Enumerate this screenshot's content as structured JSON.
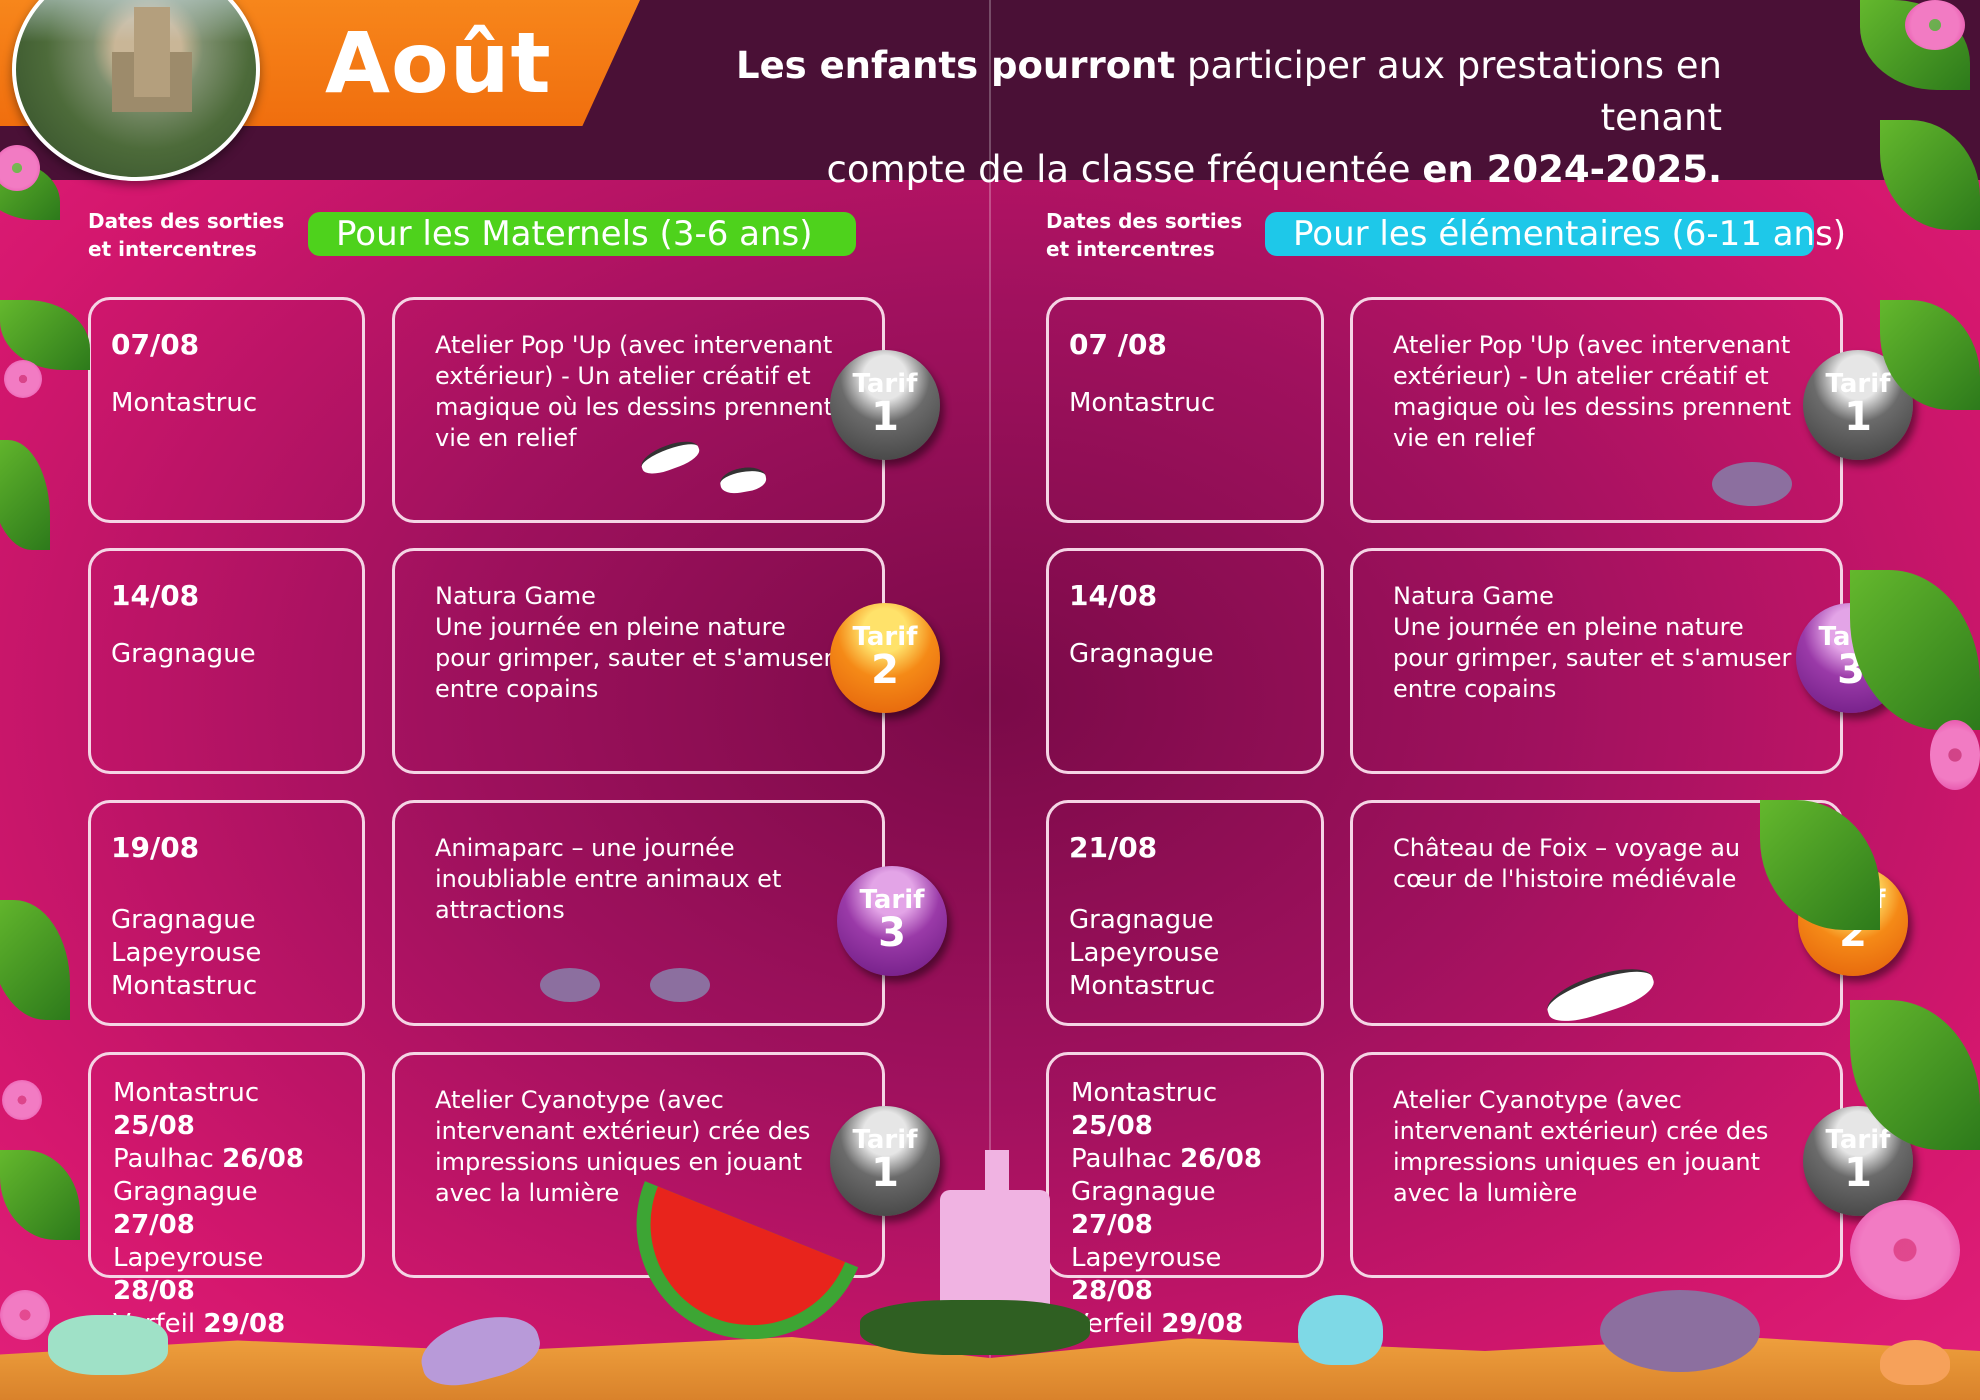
{
  "header": {
    "month": "Août",
    "intro": {
      "line1_bold": "Les enfants pourront",
      "line1_rest": " participer aux prestations en tenant",
      "line2_rest": "compte de la classe fréquentée ",
      "line2_bold": "en 2024-2025."
    }
  },
  "left": {
    "dates_label": "Dates des sorties\net intercentres",
    "pill": "Pour les Maternels (3-6 ans)",
    "rows": [
      {
        "date": "07/08",
        "place": "Montastruc",
        "activity": "Atelier Pop 'Up (avec intervenant extérieur) - Un atelier créatif et magique où les dessins prennent vie en relief",
        "tarif_label": "Tarif",
        "tarif_num": "1",
        "tarif_color": "#5a5a5a"
      },
      {
        "date": "14/08",
        "place": "Gragnague",
        "activity": "Natura Game\nUne journée en pleine nature pour grimper, sauter et s'amuser entre copains",
        "tarif_label": "Tarif",
        "tarif_num": "2",
        "tarif_color": "#f58a17"
      },
      {
        "date": "19/08",
        "places": [
          "Gragnague",
          "Lapeyrouse",
          "Montastruc"
        ],
        "activity": "Animaparc – une journée inoubliable entre animaux et attractions",
        "tarif_label": "Tarif",
        "tarif_num": "3",
        "tarif_color": "#9a3aa8"
      },
      {
        "multi": [
          {
            "place": "Montastruc",
            "date": "25/08"
          },
          {
            "place": "Paulhac",
            "date": "26/08"
          },
          {
            "place": "Gragnague",
            "date": "27/08"
          },
          {
            "place": "Lapeyrouse",
            "date": "28/08"
          },
          {
            "place": "Verfeil",
            "date": "29/08"
          }
        ],
        "activity": "Atelier Cyanotype (avec intervenant extérieur) crée des impressions uniques en jouant avec la lumière",
        "tarif_label": "Tarif",
        "tarif_num": "1",
        "tarif_color": "#5a5a5a"
      }
    ]
  },
  "right": {
    "dates_label": "Dates des sorties\net intercentres",
    "pill": "Pour les élémentaires (6-11 ans)",
    "rows": [
      {
        "date": "07 /08",
        "place": "Montastruc",
        "activity": "Atelier Pop 'Up (avec intervenant extérieur) - Un atelier créatif et magique où les dessins prennent vie en relief",
        "tarif_label": "Tarif",
        "tarif_num": "1",
        "tarif_color": "#5a5a5a"
      },
      {
        "date": "14/08",
        "place": "Gragnague",
        "activity": "Natura Game\nUne journée en pleine nature pour grimper, sauter et s'amuser entre copains",
        "tarif_label": "Tarif",
        "tarif_num": "3",
        "tarif_color": "#9a3aa8"
      },
      {
        "date": "21/08",
        "places": [
          "Gragnague",
          "Lapeyrouse",
          "Montastruc"
        ],
        "activity": "Château de Foix – voyage au cœur de l'histoire médiévale",
        "tarif_label": "Tarif",
        "tarif_num": "2",
        "tarif_color": "#f58a17"
      },
      {
        "multi": [
          {
            "place": "Montastruc",
            "date": "25/08"
          },
          {
            "place": "Paulhac",
            "date": "26/08"
          },
          {
            "place": "Gragnague",
            "date": "27/08"
          },
          {
            "place": "Lapeyrouse",
            "date": "28/08"
          },
          {
            "place": "Verfeil",
            "date": "29/08"
          }
        ],
        "activity": "Atelier Cyanotype (avec intervenant extérieur) crée des impressions uniques en jouant avec la lumière",
        "tarif_label": "Tarif",
        "tarif_num": "1",
        "tarif_color": "#5a5a5a"
      }
    ]
  },
  "colors": {
    "header_band": "#4a1036",
    "orange_tab": "#f47b16",
    "pill_green": "#4ed21c",
    "pill_blue": "#1ec8e9",
    "background": "#b0125f"
  }
}
